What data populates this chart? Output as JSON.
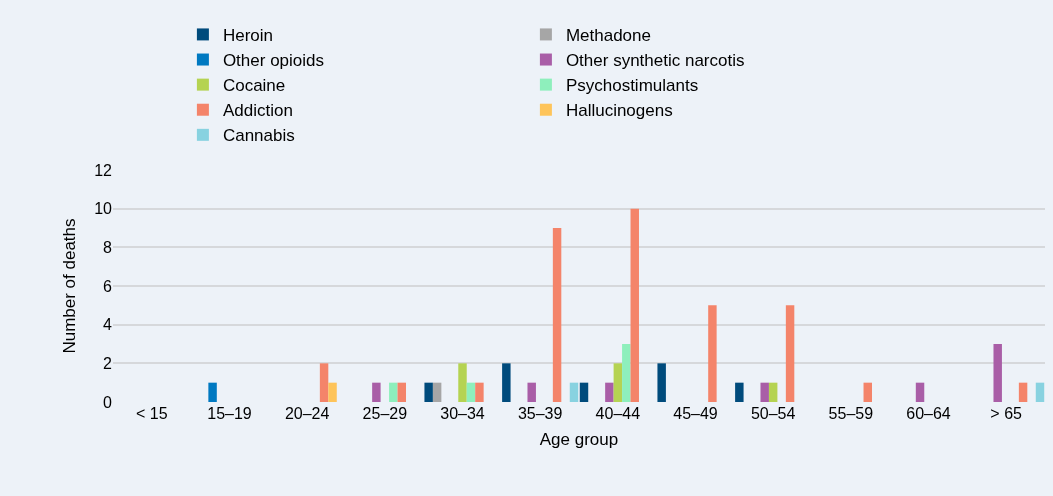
{
  "chart_data": {
    "type": "bar",
    "xlabel": "Age group",
    "ylabel": "Number of deaths",
    "categories": [
      "< 15",
      "15–19",
      "20–24",
      "25–29",
      "30–34",
      "35–39",
      "40–44",
      "45–49",
      "50–54",
      "55–59",
      "60–64",
      "> 65"
    ],
    "series": [
      {
        "name": "Heroin",
        "color": "#004b7c",
        "values": [
          0,
          0,
          0,
          0,
          1,
          2,
          1,
          2,
          1,
          0,
          0,
          0
        ]
      },
      {
        "name": "Methadone",
        "color": "#a6a6a6",
        "values": [
          0,
          0,
          0,
          0,
          1,
          0,
          0,
          0,
          0,
          0,
          0,
          0
        ]
      },
      {
        "name": "Other opioids",
        "color": "#0079c1",
        "values": [
          0,
          1,
          0,
          0,
          0,
          0,
          0,
          0,
          0,
          0,
          0,
          0
        ]
      },
      {
        "name": "Other synthetic narcotis",
        "color": "#a95ea7",
        "values": [
          0,
          0,
          0,
          1,
          0,
          1,
          1,
          0,
          1,
          0,
          1,
          3
        ]
      },
      {
        "name": "Cocaine",
        "color": "#b5d352",
        "values": [
          0,
          0,
          0,
          0,
          2,
          0,
          2,
          0,
          1,
          0,
          0,
          0
        ]
      },
      {
        "name": "Psychostimulants",
        "color": "#8eefbc",
        "values": [
          0,
          0,
          0,
          1,
          1,
          0,
          3,
          0,
          0,
          0,
          0,
          0
        ]
      },
      {
        "name": "Addiction",
        "color": "#f4846a",
        "values": [
          0,
          0,
          2,
          1,
          1,
          9,
          10,
          5,
          5,
          1,
          0,
          1
        ]
      },
      {
        "name": "Hallucinogens",
        "color": "#fec45a",
        "values": [
          0,
          0,
          1,
          0,
          0,
          0,
          0,
          0,
          0,
          0,
          0,
          0
        ]
      },
      {
        "name": "Cannabis",
        "color": "#88d2e0",
        "values": [
          0,
          0,
          0,
          0,
          0,
          1,
          0,
          0,
          0,
          0,
          0,
          1
        ]
      }
    ],
    "ylim": [
      0,
      12
    ],
    "yticks": [
      0,
      2,
      4,
      6,
      8,
      10,
      12
    ],
    "grid": "y",
    "legend": "top"
  }
}
